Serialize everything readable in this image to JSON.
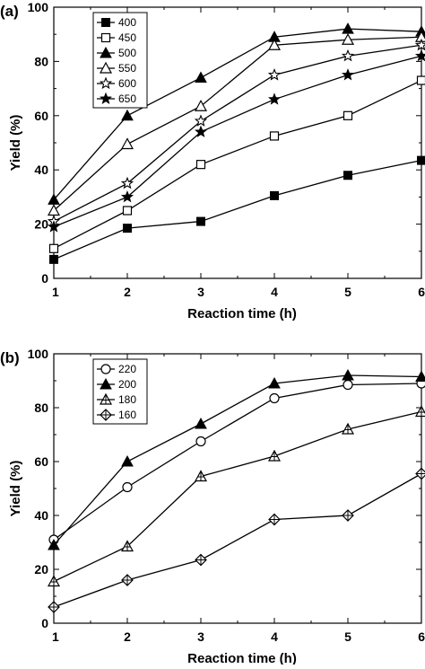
{
  "chart_data": [
    {
      "type": "line",
      "panel_label": "(a)",
      "xlabel": "Reaction time (h)",
      "ylabel": "Yield (%)",
      "x": [
        1,
        2,
        3,
        4,
        5,
        6
      ],
      "xlim": [
        1,
        6
      ],
      "ylim": [
        0,
        100
      ],
      "xticks": [
        1,
        2,
        3,
        4,
        5,
        6
      ],
      "xtick_labels": [
        "1",
        "2",
        "3",
        "4",
        "5",
        "6"
      ],
      "yticks": [
        0,
        20,
        40,
        60,
        80,
        100
      ],
      "ytick_labels": [
        "0",
        "20",
        "40",
        "60",
        "80",
        "100"
      ],
      "grid": false,
      "legend_position": "top-left",
      "series": [
        {
          "name": "400",
          "marker": "square-filled",
          "values": [
            7,
            18.5,
            21,
            30.5,
            38,
            43.5
          ]
        },
        {
          "name": "450",
          "marker": "square-open",
          "values": [
            11,
            25,
            42,
            52.5,
            60,
            73
          ]
        },
        {
          "name": "500",
          "marker": "triangle-filled",
          "values": [
            29,
            60,
            74,
            89,
            92,
            91
          ]
        },
        {
          "name": "550",
          "marker": "triangle-open",
          "values": [
            25,
            49.5,
            63.5,
            86,
            88,
            89
          ]
        },
        {
          "name": "600",
          "marker": "star-open",
          "values": [
            21,
            35,
            58,
            75,
            82,
            86
          ]
        },
        {
          "name": "650",
          "marker": "star-filled",
          "values": [
            19,
            30,
            54,
            66,
            75,
            82
          ]
        }
      ]
    },
    {
      "type": "line",
      "panel_label": "(b)",
      "xlabel": "Reaction time (h)",
      "ylabel": "Yield (%)",
      "x": [
        1,
        2,
        3,
        4,
        5,
        6
      ],
      "xlim": [
        1,
        6
      ],
      "ylim": [
        0,
        100
      ],
      "xticks": [
        1,
        2,
        3,
        4,
        5,
        6
      ],
      "xtick_labels": [
        "1",
        "2",
        "3",
        "4",
        "5",
        "6"
      ],
      "yticks": [
        0,
        20,
        40,
        60,
        80,
        100
      ],
      "ytick_labels": [
        "0",
        "20",
        "40",
        "60",
        "80",
        "100"
      ],
      "grid": false,
      "legend_position": "top-left",
      "series": [
        {
          "name": "220",
          "marker": "circle-open",
          "values": [
            31,
            50.5,
            67.5,
            83.5,
            88.5,
            89
          ]
        },
        {
          "name": "200",
          "marker": "triangle-filled",
          "values": [
            29,
            60,
            74,
            89,
            92,
            91.5
          ]
        },
        {
          "name": "180",
          "marker": "triangle-cross",
          "values": [
            15.5,
            28.5,
            54.5,
            62,
            72,
            78.5
          ]
        },
        {
          "name": "160",
          "marker": "diamond-cross",
          "values": [
            6,
            16,
            23.5,
            38.5,
            40,
            55.5
          ]
        }
      ]
    }
  ]
}
